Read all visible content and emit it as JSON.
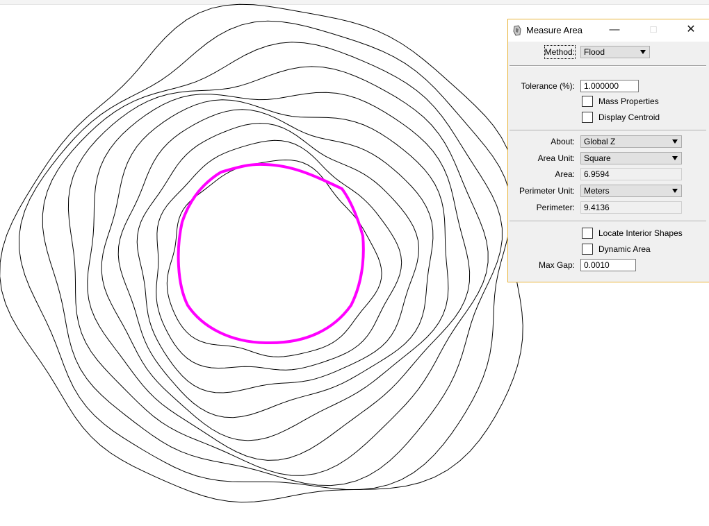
{
  "drawing": {
    "highlight_color": "#ff00ff",
    "contour_color": "#000000"
  },
  "dialog": {
    "title": "Measure Area",
    "window_buttons": {
      "minimize": "—",
      "maximize": "□",
      "close": "✕"
    },
    "method": {
      "label": "Method:",
      "value": "Flood"
    },
    "tolerance": {
      "label": "Tolerance (%):",
      "value": "1.000000"
    },
    "mass_properties": {
      "label": "Mass Properties",
      "checked": false
    },
    "display_centroid": {
      "label": "Display Centroid",
      "checked": false
    },
    "about": {
      "label": "About:",
      "value": "Global Z"
    },
    "area_unit": {
      "label": "Area Unit:",
      "value": "Square"
    },
    "area": {
      "label": "Area:",
      "value": "6.9594"
    },
    "perimeter_unit": {
      "label": "Perimeter Unit:",
      "value": "Meters"
    },
    "perimeter": {
      "label": "Perimeter:",
      "value": "9.4136"
    },
    "locate_interior": {
      "label": "Locate Interior Shapes",
      "checked": false
    },
    "dynamic_area": {
      "label": "Dynamic Area",
      "checked": false
    },
    "max_gap": {
      "label": "Max Gap:",
      "value": "0.0010"
    }
  }
}
